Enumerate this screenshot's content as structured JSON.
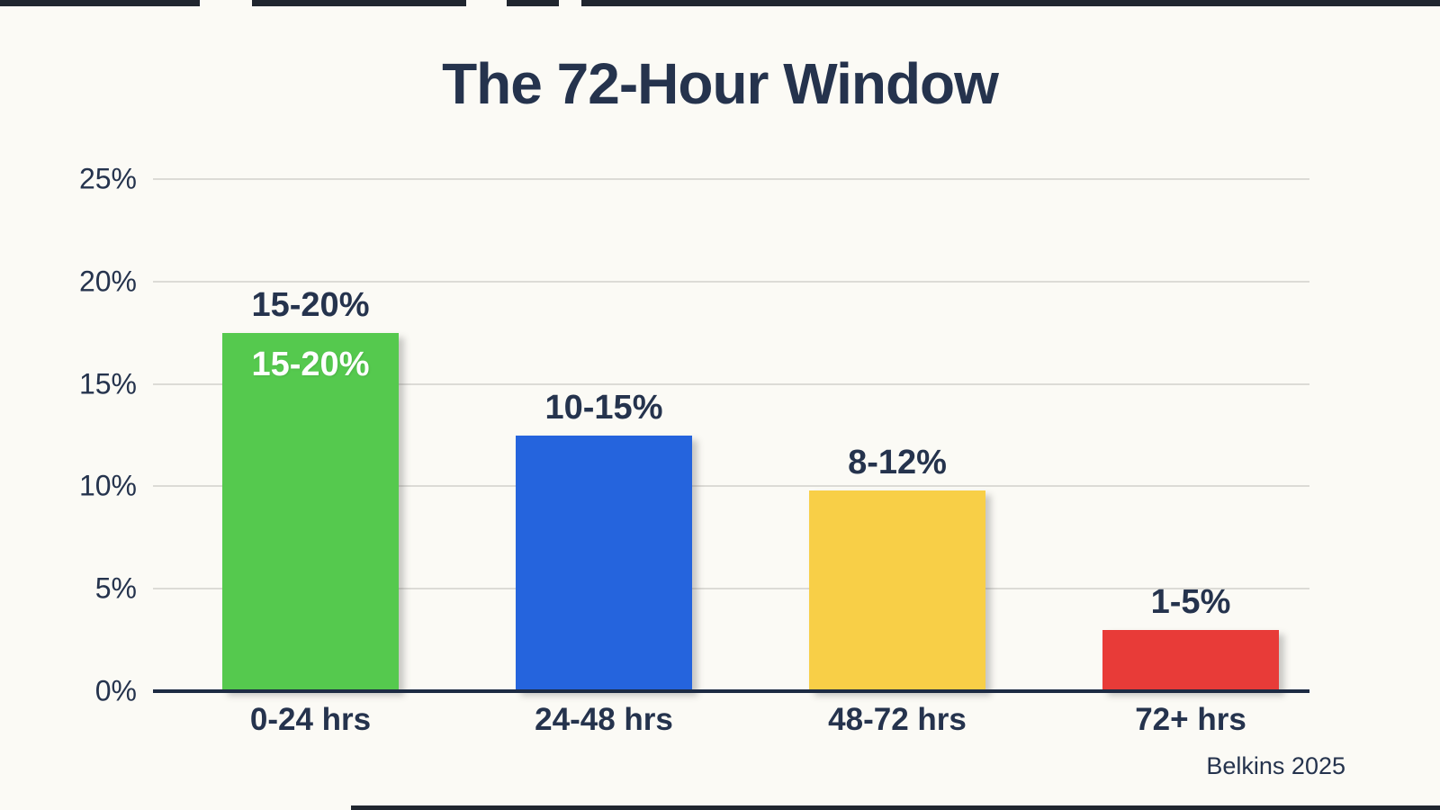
{
  "page": {
    "title": "The 72-Hour Window",
    "attribution": "Belkins 2025"
  },
  "colors": {
    "background": "#fbfaf5",
    "title_text": "#25334d",
    "axis_line": "#1d2b43",
    "gridline": "#dcdbd6",
    "tick_text": "#25334d",
    "inside_label_text": "#ffffff",
    "edge_artifact": "#20262f",
    "bar_green": "#55c94e",
    "bar_blue": "#2564dd",
    "bar_yellow": "#f8cf47",
    "bar_red": "#e83b38"
  },
  "chart_data": {
    "type": "bar",
    "title": "The 72-Hour Window",
    "categories": [
      "0-24 hrs",
      "24-48 hrs",
      "48-72 hrs",
      "72+ hrs"
    ],
    "values": [
      17.5,
      12.5,
      9.8,
      3.0
    ],
    "value_labels": [
      "15-20%",
      "10-15%",
      "8-12%",
      "1-5%"
    ],
    "inside_labels": [
      "15-20%",
      null,
      null,
      null
    ],
    "bar_colors": [
      "#55c94e",
      "#2564dd",
      "#f8cf47",
      "#e83b38"
    ],
    "yticks": [
      0,
      5,
      10,
      15,
      20,
      25
    ],
    "ytick_labels": [
      "0%",
      "5%",
      "10%",
      "15%",
      "20%",
      "25%"
    ],
    "ylim": [
      0,
      25
    ],
    "xlabel": "",
    "ylabel": "",
    "grid": true,
    "legend": false,
    "annotation": "Belkins 2025"
  }
}
